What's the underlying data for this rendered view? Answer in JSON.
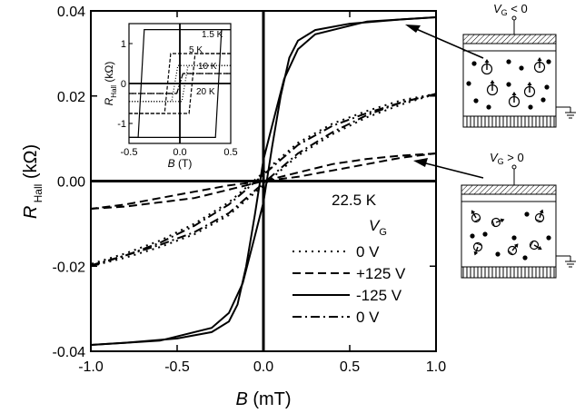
{
  "chart_data": [
    {
      "type": "line",
      "xlabel": "B (mT)",
      "ylabel": "R Hall (kΩ)",
      "xlim": [
        -1.0,
        1.0
      ],
      "ylim": [
        -0.04,
        0.04
      ],
      "x_ticks": [
        "-1.0",
        "-0.5",
        "0.0",
        "0.5",
        "1.0"
      ],
      "y_ticks": [
        "0.04",
        "0.02",
        "0.00",
        "-0.02",
        "-0.04"
      ],
      "annotation": "22.5 K",
      "legend_title": "V",
      "legend_title_sub": "G",
      "legend_position": "lower-right",
      "series": [
        {
          "name": "0 V",
          "style": "dotted",
          "up": {
            "x": [
              -1.0,
              -0.8,
              -0.6,
              -0.4,
              -0.2,
              0.0,
              0.2,
              0.4,
              0.6,
              0.8,
              1.0
            ],
            "y": [
              -0.02,
              -0.018,
              -0.0155,
              -0.0125,
              -0.008,
              -0.001,
              0.006,
              0.011,
              0.015,
              0.018,
              0.0205
            ]
          },
          "down": {
            "x": [
              1.0,
              0.8,
              0.6,
              0.4,
              0.2,
              0.0,
              -0.2,
              -0.4,
              -0.6,
              -0.8,
              -1.0
            ],
            "y": [
              0.0205,
              0.019,
              0.0165,
              0.0135,
              0.009,
              0.002,
              -0.005,
              -0.01,
              -0.014,
              -0.017,
              -0.0195
            ]
          }
        },
        {
          "name": "+125 V",
          "style": "dashed",
          "up": {
            "x": [
              -1.0,
              -0.8,
              -0.6,
              -0.4,
              -0.2,
              0.0,
              0.2,
              0.4,
              0.6,
              0.8,
              1.0
            ],
            "y": [
              -0.0065,
              -0.006,
              -0.005,
              -0.004,
              -0.002,
              0.0,
              0.001,
              0.0025,
              0.004,
              0.0055,
              0.0065
            ]
          },
          "down": {
            "x": [
              1.0,
              0.8,
              0.6,
              0.4,
              0.2,
              0.0,
              -0.2,
              -0.4,
              -0.6,
              -0.8,
              -1.0
            ],
            "y": [
              0.0065,
              0.006,
              0.0052,
              0.004,
              0.002,
              0.0,
              -0.001,
              -0.0025,
              -0.004,
              -0.0055,
              -0.0065
            ]
          }
        },
        {
          "name": "-125 V",
          "style": "solid",
          "up": {
            "x": [
              -1.0,
              -0.6,
              -0.3,
              -0.2,
              -0.12,
              -0.05,
              0.0,
              0.05,
              0.1,
              0.15,
              0.2,
              0.3,
              0.5,
              0.8,
              1.0
            ],
            "y": [
              -0.0385,
              -0.0375,
              -0.0345,
              -0.031,
              -0.024,
              -0.013,
              -0.005,
              0.008,
              0.02,
              0.029,
              0.033,
              0.0355,
              0.037,
              0.038,
              0.0385
            ]
          },
          "down": {
            "x": [
              1.0,
              0.6,
              0.3,
              0.2,
              0.12,
              0.05,
              0.0,
              -0.05,
              -0.1,
              -0.15,
              -0.2,
              -0.3,
              -0.5,
              -0.8,
              -1.0
            ],
            "y": [
              0.0385,
              0.0375,
              0.0345,
              0.031,
              0.024,
              0.013,
              0.005,
              -0.008,
              -0.02,
              -0.029,
              -0.033,
              -0.0355,
              -0.037,
              -0.038,
              -0.0385
            ]
          }
        },
        {
          "name": "0 V",
          "style": "dash-dot",
          "up": {
            "x": [
              -1.0,
              -0.8,
              -0.6,
              -0.4,
              -0.2,
              0.0,
              0.2,
              0.4,
              0.6,
              0.8,
              1.0
            ],
            "y": [
              -0.02,
              -0.0175,
              -0.015,
              -0.012,
              -0.0075,
              -0.0005,
              0.0065,
              0.0115,
              0.0155,
              0.0185,
              0.0205
            ]
          },
          "down": {
            "x": [
              1.0,
              0.8,
              0.6,
              0.4,
              0.2,
              0.0,
              -0.2,
              -0.4,
              -0.6,
              -0.8,
              -1.0
            ],
            "y": [
              0.0205,
              0.0185,
              0.016,
              0.013,
              0.0085,
              0.0015,
              -0.0055,
              -0.0105,
              -0.0145,
              -0.0175,
              -0.0198
            ]
          }
        }
      ]
    },
    {
      "type": "line",
      "xlabel": "B (T)",
      "ylabel": "R Hall (kΩ)",
      "xlim": [
        -0.5,
        0.5
      ],
      "ylim": [
        -1.5,
        1.5
      ],
      "x_ticks": [
        "-0.5",
        "0.0",
        "0.5"
      ],
      "y_ticks": [
        "1",
        "0",
        "-1"
      ],
      "temperatures": [
        "1.5 K",
        "5 K",
        "10 K",
        "20 K"
      ],
      "series": [
        {
          "name": "1.5 K",
          "style": "solid",
          "coercive": 0.38,
          "saturation": 1.35
        },
        {
          "name": "5 K",
          "style": "dashed",
          "coercive": 0.12,
          "saturation": 0.75
        },
        {
          "name": "10 K",
          "style": "dotted",
          "coercive": 0.05,
          "saturation": 0.45
        },
        {
          "name": "20 K",
          "style": "dash-dot",
          "coercive": 0.0,
          "saturation": 0.25
        }
      ]
    }
  ],
  "schematics": {
    "negative": {
      "label_v": "V",
      "label_sub": "G",
      "label_rest": " < 0"
    },
    "positive": {
      "label_v": "V",
      "label_sub": "G",
      "label_rest": " > 0"
    }
  }
}
